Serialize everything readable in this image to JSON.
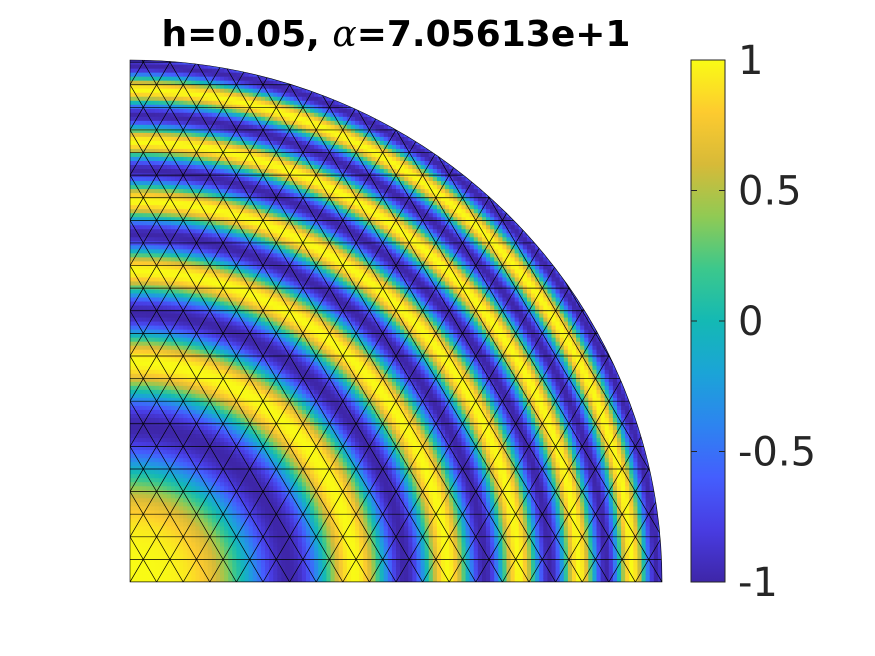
{
  "chart_data": {
    "type": "heatmap",
    "title": {
      "prefix": "h=0.05, ",
      "symbol": "α",
      "suffix": "=7.05613e+1"
    },
    "domain": "quarter-disk",
    "mesh_size_h": 0.05,
    "field": "cos(α·r²/2)",
    "alpha": 70.5613,
    "mesh_visible": true,
    "colormap": "parula",
    "clim": [
      -1,
      1
    ],
    "colorbar": {
      "location": "right",
      "ticks": [
        1,
        0.5,
        0,
        -0.5,
        -1
      ],
      "tick_labels": [
        "1",
        "0.5",
        "0",
        "-0.5",
        "-1"
      ]
    },
    "axes_visible": false,
    "grid": false
  }
}
